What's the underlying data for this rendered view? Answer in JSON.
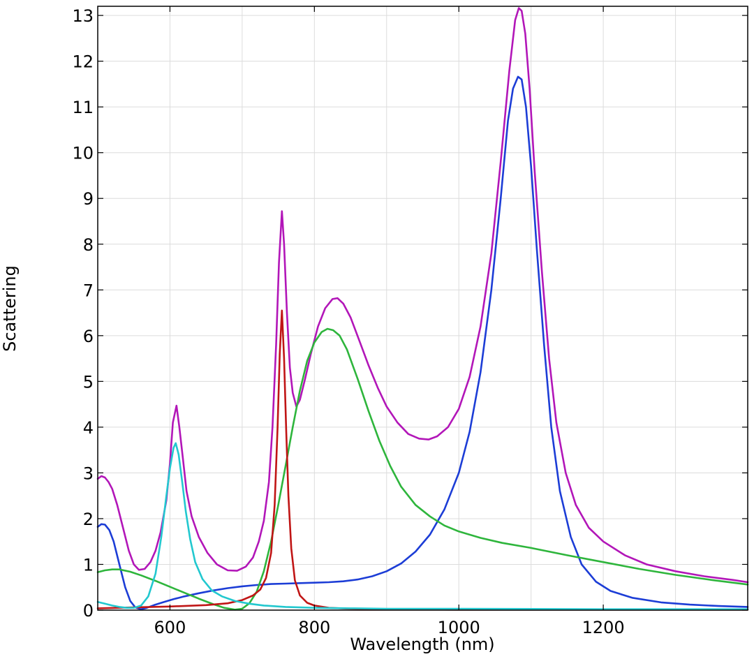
{
  "chart_data": {
    "type": "line",
    "title": "",
    "xlabel": "Wavelength (nm)",
    "ylabel": "Scattering",
    "xlim": [
      500,
      1400
    ],
    "ylim": [
      0,
      13.2
    ],
    "xticks": [
      600,
      800,
      1000,
      1200
    ],
    "yticks": [
      0,
      1,
      2,
      3,
      4,
      5,
      6,
      7,
      8,
      9,
      10,
      11,
      12,
      13
    ],
    "grid": true,
    "legend": "none",
    "series": [
      {
        "color": "#b216b8",
        "points": [
          [
            500,
            2.87
          ],
          [
            505,
            2.93
          ],
          [
            510,
            2.9
          ],
          [
            515,
            2.8
          ],
          [
            520,
            2.65
          ],
          [
            527,
            2.3
          ],
          [
            535,
            1.8
          ],
          [
            543,
            1.3
          ],
          [
            550,
            1.0
          ],
          [
            557,
            0.88
          ],
          [
            565,
            0.9
          ],
          [
            573,
            1.05
          ],
          [
            580,
            1.3
          ],
          [
            587,
            1.7
          ],
          [
            595,
            2.4
          ],
          [
            600,
            3.2
          ],
          [
            604,
            4.1
          ],
          [
            609,
            4.47
          ],
          [
            613,
            4.0
          ],
          [
            618,
            3.3
          ],
          [
            623,
            2.6
          ],
          [
            630,
            2.05
          ],
          [
            640,
            1.6
          ],
          [
            652,
            1.25
          ],
          [
            665,
            1.0
          ],
          [
            680,
            0.87
          ],
          [
            693,
            0.86
          ],
          [
            705,
            0.95
          ],
          [
            715,
            1.15
          ],
          [
            723,
            1.5
          ],
          [
            730,
            1.95
          ],
          [
            737,
            2.8
          ],
          [
            742,
            4.0
          ],
          [
            747,
            5.8
          ],
          [
            751,
            7.6
          ],
          [
            755,
            8.72
          ],
          [
            758,
            8.0
          ],
          [
            762,
            6.5
          ],
          [
            766,
            5.3
          ],
          [
            770,
            4.75
          ],
          [
            775,
            4.45
          ],
          [
            780,
            4.6
          ],
          [
            787,
            5.05
          ],
          [
            795,
            5.6
          ],
          [
            805,
            6.2
          ],
          [
            815,
            6.6
          ],
          [
            825,
            6.8
          ],
          [
            832,
            6.82
          ],
          [
            840,
            6.7
          ],
          [
            850,
            6.4
          ],
          [
            862,
            5.9
          ],
          [
            875,
            5.35
          ],
          [
            888,
            4.85
          ],
          [
            900,
            4.45
          ],
          [
            915,
            4.1
          ],
          [
            930,
            3.85
          ],
          [
            945,
            3.75
          ],
          [
            958,
            3.73
          ],
          [
            970,
            3.8
          ],
          [
            985,
            4.0
          ],
          [
            1000,
            4.4
          ],
          [
            1015,
            5.1
          ],
          [
            1030,
            6.2
          ],
          [
            1045,
            7.8
          ],
          [
            1058,
            9.8
          ],
          [
            1070,
            11.8
          ],
          [
            1078,
            12.9
          ],
          [
            1083,
            13.16
          ],
          [
            1087,
            13.1
          ],
          [
            1092,
            12.6
          ],
          [
            1098,
            11.4
          ],
          [
            1105,
            9.6
          ],
          [
            1115,
            7.4
          ],
          [
            1125,
            5.5
          ],
          [
            1135,
            4.1
          ],
          [
            1148,
            3.0
          ],
          [
            1162,
            2.3
          ],
          [
            1180,
            1.8
          ],
          [
            1200,
            1.5
          ],
          [
            1230,
            1.2
          ],
          [
            1260,
            1.0
          ],
          [
            1300,
            0.85
          ],
          [
            1340,
            0.74
          ],
          [
            1380,
            0.66
          ],
          [
            1400,
            0.61
          ]
        ]
      },
      {
        "color": "#1c3dd6",
        "points": [
          [
            500,
            1.82
          ],
          [
            505,
            1.88
          ],
          [
            510,
            1.87
          ],
          [
            516,
            1.75
          ],
          [
            522,
            1.5
          ],
          [
            530,
            1.0
          ],
          [
            538,
            0.5
          ],
          [
            545,
            0.2
          ],
          [
            552,
            0.06
          ],
          [
            560,
            0.02
          ],
          [
            568,
            0.05
          ],
          [
            578,
            0.11
          ],
          [
            590,
            0.17
          ],
          [
            605,
            0.24
          ],
          [
            620,
            0.3
          ],
          [
            640,
            0.37
          ],
          [
            660,
            0.43
          ],
          [
            680,
            0.48
          ],
          [
            700,
            0.52
          ],
          [
            720,
            0.55
          ],
          [
            740,
            0.57
          ],
          [
            760,
            0.58
          ],
          [
            780,
            0.59
          ],
          [
            800,
            0.6
          ],
          [
            820,
            0.61
          ],
          [
            840,
            0.63
          ],
          [
            860,
            0.67
          ],
          [
            880,
            0.74
          ],
          [
            900,
            0.85
          ],
          [
            920,
            1.02
          ],
          [
            940,
            1.28
          ],
          [
            960,
            1.65
          ],
          [
            980,
            2.2
          ],
          [
            1000,
            3.0
          ],
          [
            1015,
            3.9
          ],
          [
            1030,
            5.2
          ],
          [
            1045,
            7.0
          ],
          [
            1058,
            9.0
          ],
          [
            1068,
            10.7
          ],
          [
            1075,
            11.4
          ],
          [
            1082,
            11.66
          ],
          [
            1087,
            11.6
          ],
          [
            1093,
            11.0
          ],
          [
            1100,
            9.7
          ],
          [
            1108,
            7.9
          ],
          [
            1118,
            5.8
          ],
          [
            1128,
            4.0
          ],
          [
            1140,
            2.6
          ],
          [
            1155,
            1.6
          ],
          [
            1170,
            1.0
          ],
          [
            1190,
            0.62
          ],
          [
            1210,
            0.42
          ],
          [
            1240,
            0.27
          ],
          [
            1280,
            0.17
          ],
          [
            1320,
            0.12
          ],
          [
            1360,
            0.09
          ],
          [
            1400,
            0.07
          ]
        ]
      },
      {
        "color": "#2eb53c",
        "points": [
          [
            500,
            0.83
          ],
          [
            510,
            0.87
          ],
          [
            520,
            0.89
          ],
          [
            530,
            0.89
          ],
          [
            545,
            0.84
          ],
          [
            560,
            0.76
          ],
          [
            580,
            0.64
          ],
          [
            600,
            0.51
          ],
          [
            620,
            0.38
          ],
          [
            640,
            0.25
          ],
          [
            660,
            0.13
          ],
          [
            675,
            0.05
          ],
          [
            690,
            0.01
          ],
          [
            700,
            0.03
          ],
          [
            710,
            0.15
          ],
          [
            720,
            0.4
          ],
          [
            730,
            0.85
          ],
          [
            740,
            1.5
          ],
          [
            750,
            2.3
          ],
          [
            760,
            3.15
          ],
          [
            770,
            4.0
          ],
          [
            780,
            4.8
          ],
          [
            790,
            5.45
          ],
          [
            800,
            5.85
          ],
          [
            810,
            6.08
          ],
          [
            818,
            6.15
          ],
          [
            826,
            6.12
          ],
          [
            835,
            6.0
          ],
          [
            845,
            5.7
          ],
          [
            860,
            5.05
          ],
          [
            875,
            4.35
          ],
          [
            890,
            3.7
          ],
          [
            905,
            3.15
          ],
          [
            920,
            2.7
          ],
          [
            940,
            2.3
          ],
          [
            960,
            2.05
          ],
          [
            980,
            1.85
          ],
          [
            1000,
            1.72
          ],
          [
            1030,
            1.58
          ],
          [
            1060,
            1.47
          ],
          [
            1100,
            1.36
          ],
          [
            1150,
            1.2
          ],
          [
            1200,
            1.05
          ],
          [
            1250,
            0.9
          ],
          [
            1300,
            0.77
          ],
          [
            1350,
            0.66
          ],
          [
            1400,
            0.56
          ]
        ]
      },
      {
        "color": "#c01515",
        "points": [
          [
            500,
            0.04
          ],
          [
            550,
            0.06
          ],
          [
            600,
            0.08
          ],
          [
            650,
            0.11
          ],
          [
            680,
            0.15
          ],
          [
            700,
            0.22
          ],
          [
            715,
            0.32
          ],
          [
            725,
            0.45
          ],
          [
            733,
            0.7
          ],
          [
            740,
            1.25
          ],
          [
            745,
            2.3
          ],
          [
            749,
            4.0
          ],
          [
            752,
            5.6
          ],
          [
            755,
            6.55
          ],
          [
            758,
            5.5
          ],
          [
            761,
            3.9
          ],
          [
            764,
            2.5
          ],
          [
            768,
            1.35
          ],
          [
            773,
            0.65
          ],
          [
            780,
            0.32
          ],
          [
            790,
            0.16
          ],
          [
            800,
            0.1
          ],
          [
            820,
            0.05
          ],
          [
            850,
            0.03
          ],
          [
            900,
            0.02
          ],
          [
            1000,
            0.01
          ],
          [
            1200,
            0.01
          ],
          [
            1400,
            0.01
          ]
        ]
      },
      {
        "color": "#22c8cf",
        "points": [
          [
            500,
            0.18
          ],
          [
            510,
            0.14
          ],
          [
            520,
            0.1
          ],
          [
            530,
            0.07
          ],
          [
            540,
            0.05
          ],
          [
            550,
            0.05
          ],
          [
            560,
            0.1
          ],
          [
            570,
            0.3
          ],
          [
            580,
            0.8
          ],
          [
            588,
            1.6
          ],
          [
            595,
            2.5
          ],
          [
            600,
            3.1
          ],
          [
            605,
            3.55
          ],
          [
            608,
            3.65
          ],
          [
            612,
            3.4
          ],
          [
            617,
            2.8
          ],
          [
            622,
            2.15
          ],
          [
            628,
            1.55
          ],
          [
            635,
            1.05
          ],
          [
            645,
            0.68
          ],
          [
            658,
            0.43
          ],
          [
            672,
            0.3
          ],
          [
            690,
            0.2
          ],
          [
            710,
            0.14
          ],
          [
            730,
            0.1
          ],
          [
            760,
            0.07
          ],
          [
            800,
            0.05
          ],
          [
            850,
            0.04
          ],
          [
            900,
            0.03
          ],
          [
            1000,
            0.03
          ],
          [
            1200,
            0.02
          ],
          [
            1400,
            0.02
          ]
        ]
      }
    ]
  }
}
